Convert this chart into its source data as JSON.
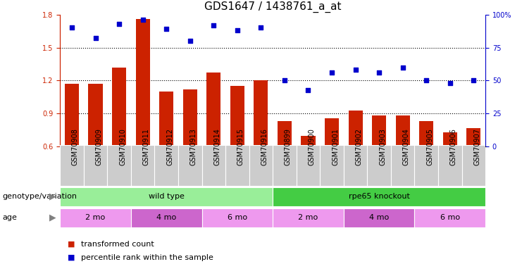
{
  "title": "GDS1647 / 1438761_a_at",
  "samples": [
    "GSM70908",
    "GSM70909",
    "GSM70910",
    "GSM70911",
    "GSM70912",
    "GSM70913",
    "GSM70914",
    "GSM70915",
    "GSM70916",
    "GSM70899",
    "GSM70900",
    "GSM70901",
    "GSM70902",
    "GSM70903",
    "GSM70904",
    "GSM70905",
    "GSM70906",
    "GSM70907"
  ],
  "transformed_count": [
    1.17,
    1.17,
    1.32,
    1.76,
    1.1,
    1.12,
    1.27,
    1.15,
    1.2,
    0.83,
    0.7,
    0.86,
    0.93,
    0.88,
    0.88,
    0.83,
    0.73,
    0.77
  ],
  "percentile_rank": [
    90,
    82,
    93,
    96,
    89,
    80,
    92,
    88,
    90,
    50,
    43,
    56,
    58,
    56,
    60,
    50,
    48,
    50
  ],
  "bar_color": "#cc2200",
  "scatter_color": "#0000cc",
  "ylim_left": [
    0.6,
    1.8
  ],
  "ylim_right": [
    0,
    100
  ],
  "yticks_left": [
    0.6,
    0.9,
    1.2,
    1.5,
    1.8
  ],
  "yticks_right": [
    0,
    25,
    50,
    75,
    100
  ],
  "hlines": [
    0.9,
    1.2,
    1.5
  ],
  "genotype_groups": [
    {
      "label": "wild type",
      "start": 0,
      "end": 9,
      "color": "#99ee99"
    },
    {
      "label": "rpe65 knockout",
      "start": 9,
      "end": 18,
      "color": "#44cc44"
    }
  ],
  "age_groups": [
    {
      "label": "2 mo",
      "start": 0,
      "end": 3,
      "color": "#ee99ee"
    },
    {
      "label": "4 mo",
      "start": 3,
      "end": 6,
      "color": "#cc66cc"
    },
    {
      "label": "6 mo",
      "start": 6,
      "end": 9,
      "color": "#ee99ee"
    },
    {
      "label": "2 mo",
      "start": 9,
      "end": 12,
      "color": "#ee99ee"
    },
    {
      "label": "4 mo",
      "start": 12,
      "end": 15,
      "color": "#cc66cc"
    },
    {
      "label": "6 mo",
      "start": 15,
      "end": 18,
      "color": "#ee99ee"
    }
  ],
  "legend_items": [
    {
      "label": "transformed count",
      "color": "#cc2200"
    },
    {
      "label": "percentile rank within the sample",
      "color": "#0000cc"
    }
  ],
  "background_color": "#ffffff",
  "plot_bg_color": "#ffffff",
  "xtick_bg_color": "#cccccc",
  "genotype_label": "genotype/variation",
  "age_label": "age",
  "title_fontsize": 11,
  "tick_fontsize": 7,
  "label_fontsize": 8,
  "annotation_fontsize": 8
}
